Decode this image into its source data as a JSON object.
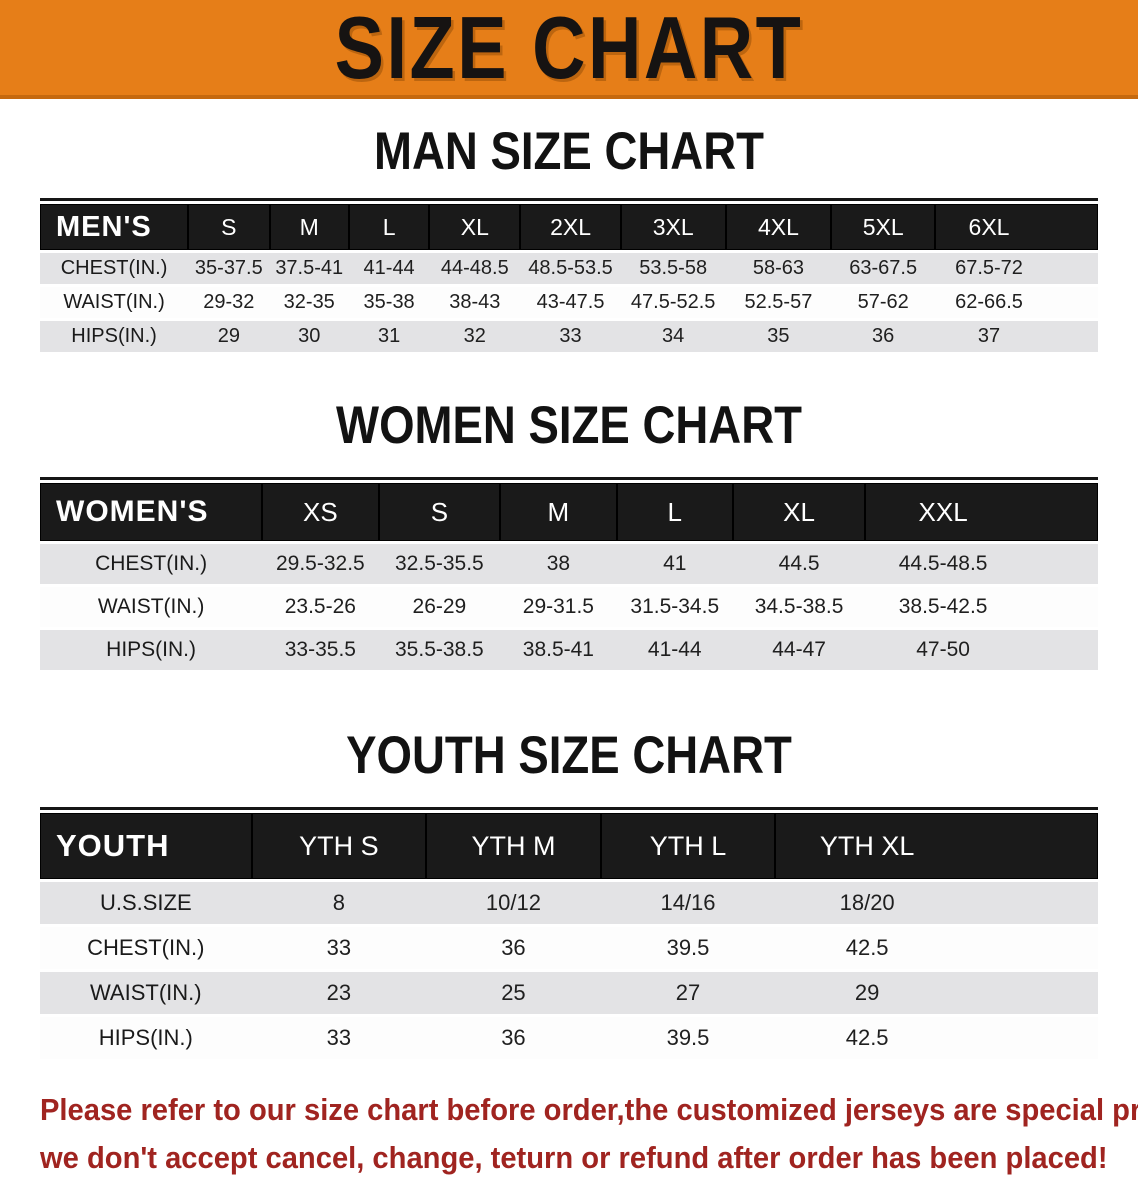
{
  "banner": {
    "title": "SIZE CHART",
    "bg_color": "#E67E18",
    "text_color": "#161312"
  },
  "colors": {
    "table_header_bg": "#1A1A1A",
    "table_header_text": "#FFFFFF",
    "row_stripe": "#E3E3E5",
    "notice_text": "#A02420"
  },
  "sections": [
    {
      "id": "men",
      "heading": "MAN SIZE CHART",
      "table": {
        "header_label": "MEN'S",
        "columns": [
          "S",
          "M",
          "L",
          "XL",
          "2XL",
          "3XL",
          "4XL",
          "5XL",
          "6XL"
        ],
        "rows": [
          {
            "label": "CHEST(IN.)",
            "values": [
              "35-37.5",
              "37.5-41",
              "41-44",
              "44-48.5",
              "48.5-53.5",
              "53.5-58",
              "58-63",
              "63-67.5",
              "67.5-72"
            ]
          },
          {
            "label": "WAIST(IN.)",
            "values": [
              "29-32",
              "32-35",
              "35-38",
              "38-43",
              "43-47.5",
              "47.5-52.5",
              "52.5-57",
              "57-62",
              "62-66.5"
            ]
          },
          {
            "label": "HIPS(IN.)",
            "values": [
              "29",
              "30",
              "31",
              "32",
              "33",
              "34",
              "35",
              "36",
              "37"
            ]
          }
        ]
      }
    },
    {
      "id": "women",
      "heading": "WOMEN SIZE CHART",
      "table": {
        "header_label": "WOMEN'S",
        "columns": [
          "XS",
          "S",
          "M",
          "L",
          "XL",
          "XXL"
        ],
        "rows": [
          {
            "label": "CHEST(IN.)",
            "values": [
              "29.5-32.5",
              "32.5-35.5",
              "38",
              "41",
              "44.5",
              "44.5-48.5"
            ]
          },
          {
            "label": "WAIST(IN.)",
            "values": [
              "23.5-26",
              "26-29",
              "29-31.5",
              "31.5-34.5",
              "34.5-38.5",
              "38.5-42.5"
            ]
          },
          {
            "label": "HIPS(IN.)",
            "values": [
              "33-35.5",
              "35.5-38.5",
              "38.5-41",
              "41-44",
              "44-47",
              "47-50"
            ]
          }
        ]
      }
    },
    {
      "id": "youth",
      "heading": "YOUTH SIZE CHART",
      "table": {
        "header_label": "YOUTH",
        "columns": [
          "YTH S",
          "YTH M",
          "YTH L",
          "YTH XL"
        ],
        "rows": [
          {
            "label": "U.S.SIZE",
            "values": [
              "8",
              "10/12",
              "14/16",
              "18/20"
            ]
          },
          {
            "label": "CHEST(IN.)",
            "values": [
              "33",
              "36",
              "39.5",
              "42.5"
            ]
          },
          {
            "label": "WAIST(IN.)",
            "values": [
              "23",
              "25",
              "27",
              "29"
            ]
          },
          {
            "label": "HIPS(IN.)",
            "values": [
              "33",
              "36",
              "39.5",
              "42.5"
            ]
          }
        ]
      }
    }
  ],
  "footer": {
    "lines": [
      "Please refer to our size chart before order,the customized jerseys are special products,",
      "we don't accept cancel, change, teturn or refund after order has been placed!"
    ]
  }
}
